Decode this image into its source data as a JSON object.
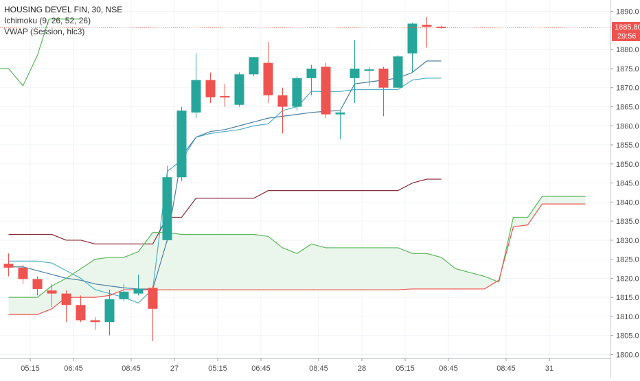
{
  "legend": {
    "title": "HOUSING DEVEL FIN, 30, NSE",
    "indicator1": "Ichimoku (9, 26, 52, 26)",
    "indicator2": "VWAP (Session, hlc3)"
  },
  "price_badge": {
    "value": "1885.80",
    "timer": "29:56",
    "color": "#ef5350"
  },
  "colors": {
    "up": "#26a69a",
    "down": "#ef5350",
    "tenkan": "#4fb0c6",
    "kijun": "#8b2d3b",
    "chikou": "#5bb85b",
    "spanA": "#5bb85b",
    "spanB": "#ef5350",
    "cloud": "#e8f5e9",
    "vwap": "#4a7ea8"
  },
  "chart_data": {
    "type": "candlestick",
    "ylim": [
      1799,
      1893
    ],
    "y_ticks": [
      1800,
      1805,
      1810,
      1815,
      1820,
      1825,
      1830,
      1835,
      1840,
      1845,
      1850,
      1855,
      1860,
      1865,
      1870,
      1875,
      1880,
      1890
    ],
    "x_ticks": [
      {
        "label": "05:15",
        "i": 1.5
      },
      {
        "label": "06:45",
        "i": 4.5
      },
      {
        "label": "08:45",
        "i": 8.5
      },
      {
        "label": "27",
        "i": 11.5
      },
      {
        "label": "05:15",
        "i": 14.5
      },
      {
        "label": "06:45",
        "i": 17.5
      },
      {
        "label": "08:45",
        "i": 21.5
      },
      {
        "label": "28",
        "i": 24.5
      },
      {
        "label": "05:15",
        "i": 27.5
      },
      {
        "label": "06:45",
        "i": 30.5
      },
      {
        "label": "08:45",
        "i": 34.5
      },
      {
        "label": "31",
        "i": 37.5
      }
    ],
    "current_price": 1885.8,
    "candles": [
      {
        "o": 1823.8,
        "h": 1826.5,
        "l": 1820.5,
        "c": 1822.8
      },
      {
        "o": 1822.8,
        "h": 1823.5,
        "l": 1818.5,
        "c": 1819.8
      },
      {
        "o": 1819.8,
        "h": 1820.5,
        "l": 1815.5,
        "c": 1817.2
      },
      {
        "o": 1816.8,
        "h": 1818.5,
        "l": 1812.5,
        "c": 1816.0
      },
      {
        "o": 1816.0,
        "h": 1816.8,
        "l": 1808.5,
        "c": 1813.0
      },
      {
        "o": 1813.0,
        "h": 1815.5,
        "l": 1808.5,
        "c": 1809.0
      },
      {
        "o": 1809.0,
        "h": 1809.8,
        "l": 1806.5,
        "c": 1808.5
      },
      {
        "o": 1808.5,
        "h": 1817.0,
        "l": 1805.0,
        "c": 1814.5
      },
      {
        "o": 1814.5,
        "h": 1818.5,
        "l": 1814.0,
        "c": 1816.5
      },
      {
        "o": 1816.0,
        "h": 1821.0,
        "l": 1815.5,
        "c": 1817.2
      },
      {
        "o": 1817.5,
        "h": 1818.0,
        "l": 1803.5,
        "c": 1812.0
      },
      {
        "o": 1830.0,
        "h": 1849.5,
        "l": 1829.5,
        "c": 1846.5
      },
      {
        "o": 1846.5,
        "h": 1865.0,
        "l": 1845.5,
        "c": 1864.0
      },
      {
        "o": 1863.5,
        "h": 1879.0,
        "l": 1862.0,
        "c": 1872.0
      },
      {
        "o": 1872.0,
        "h": 1874.0,
        "l": 1866.0,
        "c": 1867.5
      },
      {
        "o": 1867.8,
        "h": 1871.0,
        "l": 1865.0,
        "c": 1867.5
      },
      {
        "o": 1865.5,
        "h": 1874.0,
        "l": 1865.0,
        "c": 1873.5
      },
      {
        "o": 1873.5,
        "h": 1878.0,
        "l": 1873.0,
        "c": 1878.0
      },
      {
        "o": 1876.5,
        "h": 1882.0,
        "l": 1866.0,
        "c": 1868.0
      },
      {
        "o": 1868.0,
        "h": 1870.0,
        "l": 1858.0,
        "c": 1865.0
      },
      {
        "o": 1865.0,
        "h": 1873.0,
        "l": 1864.0,
        "c": 1872.5
      },
      {
        "o": 1872.5,
        "h": 1876.0,
        "l": 1868.0,
        "c": 1875.0
      },
      {
        "o": 1875.5,
        "h": 1876.5,
        "l": 1862.0,
        "c": 1863.0
      },
      {
        "o": 1863.0,
        "h": 1864.0,
        "l": 1856.5,
        "c": 1863.5
      },
      {
        "o": 1872.5,
        "h": 1882.5,
        "l": 1866.0,
        "c": 1875.0
      },
      {
        "o": 1874.5,
        "h": 1875.5,
        "l": 1870.5,
        "c": 1874.8
      },
      {
        "o": 1875.0,
        "h": 1875.5,
        "l": 1862.5,
        "c": 1870.0
      },
      {
        "o": 1870.0,
        "h": 1878.5,
        "l": 1870.0,
        "c": 1878.2
      },
      {
        "o": 1879.0,
        "h": 1887.0,
        "l": 1874.0,
        "c": 1886.8
      },
      {
        "o": 1886.5,
        "h": 1888.5,
        "l": 1880.5,
        "c": 1886.0
      },
      {
        "o": 1886.0,
        "h": 1886.2,
        "l": 1885.5,
        "c": 1885.8
      }
    ],
    "series": [
      {
        "name": "Tenkan",
        "color_key": "tenkan",
        "points": [
          [
            0,
            1824.5
          ],
          [
            2,
            1824.5
          ],
          [
            3,
            1824
          ],
          [
            4,
            1822
          ],
          [
            5,
            1820
          ],
          [
            6,
            1817
          ],
          [
            7,
            1816
          ],
          [
            8,
            1815
          ],
          [
            9,
            1813.5
          ],
          [
            10,
            1817.2
          ],
          [
            11,
            1848
          ],
          [
            12,
            1851
          ],
          [
            13,
            1857
          ],
          [
            14,
            1858
          ],
          [
            15,
            1858.5
          ],
          [
            16,
            1859
          ],
          [
            17,
            1860
          ],
          [
            18,
            1860.5
          ],
          [
            19,
            1864
          ],
          [
            20,
            1865
          ],
          [
            21,
            1869
          ],
          [
            22,
            1869
          ],
          [
            23,
            1869
          ],
          [
            24,
            1869.5
          ],
          [
            25,
            1869.5
          ],
          [
            26,
            1869.5
          ],
          [
            27,
            1869.5
          ],
          [
            28,
            1872
          ],
          [
            29,
            1872.5
          ],
          [
            30,
            1872.5
          ]
        ]
      },
      {
        "name": "Kijun",
        "color_key": "kijun",
        "points": [
          [
            0,
            1831.5
          ],
          [
            3,
            1831.5
          ],
          [
            4,
            1830
          ],
          [
            5,
            1830
          ],
          [
            6,
            1829
          ],
          [
            9,
            1829
          ],
          [
            10,
            1829
          ],
          [
            11,
            1836
          ],
          [
            12,
            1836
          ],
          [
            13,
            1841
          ],
          [
            17,
            1841
          ],
          [
            18,
            1843
          ],
          [
            26,
            1843
          ],
          [
            27,
            1843
          ],
          [
            28,
            1845
          ],
          [
            29,
            1846
          ],
          [
            30,
            1846
          ]
        ]
      },
      {
        "name": "VWAP",
        "color_key": "vwap",
        "points": [
          [
            0,
            1823
          ],
          [
            1,
            1823
          ],
          [
            2,
            1822
          ],
          [
            3,
            1821
          ],
          [
            4,
            1820
          ],
          [
            5,
            1819.5
          ],
          [
            6,
            1818.5
          ],
          [
            7,
            1818
          ],
          [
            8,
            1817.5
          ],
          [
            9,
            1817.2
          ],
          [
            10,
            1817.2
          ],
          [
            11,
            1830
          ],
          [
            12,
            1852
          ],
          [
            13,
            1857
          ],
          [
            14,
            1858.5
          ],
          [
            15,
            1859
          ],
          [
            16,
            1860
          ],
          [
            17,
            1861
          ],
          [
            18,
            1862
          ],
          [
            19,
            1862.5
          ],
          [
            20,
            1863
          ],
          [
            21,
            1863.5
          ],
          [
            22,
            1863.8
          ],
          [
            23,
            1864
          ],
          [
            24,
            1871
          ],
          [
            25,
            1871.5
          ],
          [
            26,
            1872
          ],
          [
            27,
            1872.5
          ],
          [
            28,
            1874
          ],
          [
            29,
            1877
          ],
          [
            30,
            1877
          ]
        ]
      },
      {
        "name": "Chikou",
        "color_key": "chikou",
        "points": [
          [
            -0.6,
            1875
          ],
          [
            0,
            1875
          ],
          [
            1,
            1870.5
          ],
          [
            2,
            1878.5
          ],
          [
            2.8,
            1888
          ],
          [
            4,
            1888
          ],
          [
            5,
            1888
          ]
        ]
      },
      {
        "name": "Span A",
        "color_key": "spanA",
        "points": [
          [
            0,
            1815
          ],
          [
            2,
            1815
          ],
          [
            3,
            1818
          ],
          [
            4,
            1820
          ],
          [
            5,
            1822.5
          ],
          [
            6,
            1825
          ],
          [
            7,
            1825.5
          ],
          [
            8,
            1825.5
          ],
          [
            9,
            1827
          ],
          [
            10,
            1832
          ],
          [
            11,
            1832
          ],
          [
            12,
            1831.5
          ],
          [
            13,
            1831.5
          ],
          [
            17,
            1831.5
          ],
          [
            18,
            1831
          ],
          [
            19,
            1828
          ],
          [
            20,
            1826.5
          ],
          [
            21,
            1829
          ],
          [
            22,
            1828
          ],
          [
            24,
            1828
          ],
          [
            27,
            1828
          ],
          [
            28,
            1826.5
          ],
          [
            29,
            1826.5
          ],
          [
            30,
            1825.5
          ],
          [
            31,
            1822.5
          ],
          [
            32,
            1821.5
          ],
          [
            33,
            1820.5
          ],
          [
            34,
            1819
          ],
          [
            35,
            1836
          ],
          [
            36,
            1836
          ],
          [
            37,
            1841.5
          ],
          [
            40,
            1841.5
          ]
        ]
      },
      {
        "name": "Span B",
        "color_key": "spanB",
        "points": [
          [
            0,
            1810.5
          ],
          [
            2,
            1810.5
          ],
          [
            3,
            1812
          ],
          [
            4,
            1815
          ],
          [
            5,
            1815
          ],
          [
            6,
            1815
          ],
          [
            7,
            1815.5
          ],
          [
            8,
            1817
          ],
          [
            10,
            1817
          ],
          [
            11,
            1817
          ],
          [
            20,
            1817
          ],
          [
            27,
            1817
          ],
          [
            28,
            1817.2
          ],
          [
            33,
            1817.2
          ],
          [
            34,
            1819.5
          ],
          [
            35,
            1833.5
          ],
          [
            36,
            1834
          ],
          [
            37,
            1839.5
          ],
          [
            40,
            1839.5
          ]
        ]
      }
    ]
  }
}
